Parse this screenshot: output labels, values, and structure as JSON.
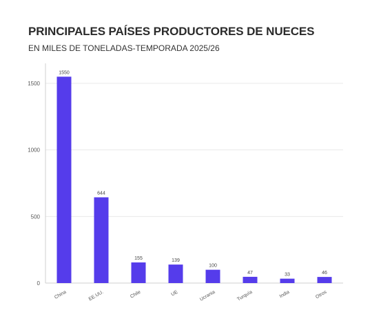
{
  "chart_data": {
    "type": "bar",
    "title": "PRINCIPALES PAÍSES PRODUCTORES DE NUECES",
    "subtitle": "EN MILES DE TONELADAS-TEMPORADA 2025/26",
    "categories": [
      "China",
      "EE.UU.",
      "Chile",
      "UE",
      "Ucrania",
      "Turquía",
      "India",
      "Otros"
    ],
    "values": [
      1550,
      644,
      155,
      139,
      100,
      47,
      33,
      46
    ],
    "data_labels": [
      "1550",
      "644",
      "155",
      "139",
      "100",
      "47",
      "33",
      "46"
    ],
    "ylim": [
      0,
      1650
    ],
    "yticks": [
      0,
      500,
      1000,
      1500
    ],
    "ytick_labels": [
      "0",
      "500",
      "1000",
      "1500"
    ],
    "grid": true,
    "legend": "none",
    "xlabel": "",
    "ylabel": ""
  },
  "colors": {
    "bar": "#553ceb",
    "grid": "#e9e9e9",
    "axis": "#cfcfcf"
  }
}
